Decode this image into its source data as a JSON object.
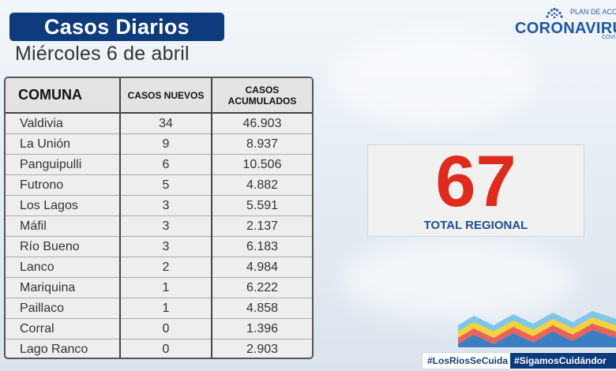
{
  "header": {
    "title": "Casos Diarios",
    "date": "Miércoles 6 de abril"
  },
  "logo": {
    "top_text": "PLAN DE ACC",
    "main_text": "CORONAVIRU",
    "sub_text": "COVI"
  },
  "table": {
    "headers": {
      "comuna": "COMUNA",
      "nuevos": "CASOS NUEVOS",
      "acumulados_line1": "CASOS",
      "acumulados_line2": "ACUMULADOS"
    },
    "rows": [
      {
        "comuna": "Valdivia",
        "nuevos": "34",
        "acumulados": "46.903"
      },
      {
        "comuna": "La Unión",
        "nuevos": "9",
        "acumulados": "8.937"
      },
      {
        "comuna": "Panguipulli",
        "nuevos": "6",
        "acumulados": "10.506"
      },
      {
        "comuna": "Futrono",
        "nuevos": "5",
        "acumulados": "4.882"
      },
      {
        "comuna": "Los Lagos",
        "nuevos": "3",
        "acumulados": "5.591"
      },
      {
        "comuna": "Máfil",
        "nuevos": "3",
        "acumulados": "2.137"
      },
      {
        "comuna": "Río Bueno",
        "nuevos": "3",
        "acumulados": "6.183"
      },
      {
        "comuna": "Lanco",
        "nuevos": "2",
        "acumulados": "4.984"
      },
      {
        "comuna": "Mariquina",
        "nuevos": "1",
        "acumulados": "6.222"
      },
      {
        "comuna": "Paillaco",
        "nuevos": "1",
        "acumulados": "4.858"
      },
      {
        "comuna": "Corral",
        "nuevos": "0",
        "acumulados": "1.396"
      },
      {
        "comuna": "Lago Ranco",
        "nuevos": "0",
        "acumulados": "2.903"
      }
    ]
  },
  "total": {
    "value": "67",
    "label": "TOTAL REGIONAL"
  },
  "footer": {
    "hashtag1": "#LosRíosSeCuida",
    "hashtag2": "#SigamosCuidándor"
  },
  "colors": {
    "brand_blue": "#0d3b7d",
    "total_red": "#e02a1b",
    "wave_colors": [
      "#7ec7e8",
      "#f4d23c",
      "#e8645a",
      "#3a7fc4"
    ]
  }
}
